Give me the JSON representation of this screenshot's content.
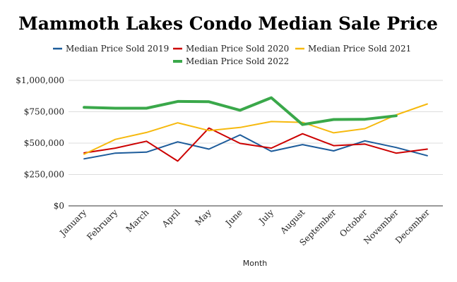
{
  "chart_data": {
    "type": "line",
    "title": "Mammoth Lakes Condo Median Sale Price",
    "xlabel": "Month",
    "ylabel": "",
    "ylim": [
      0,
      1000000
    ],
    "yticks": [
      0,
      250000,
      500000,
      750000,
      1000000
    ],
    "ytick_labels": [
      "$0",
      "$250,000",
      "$500,000",
      "$750,000",
      "$1,000,000"
    ],
    "grid": true,
    "legend_position": "top",
    "categories": [
      "January",
      "February",
      "March",
      "April",
      "May",
      "June",
      "July",
      "August",
      "September",
      "October",
      "November",
      "December"
    ],
    "series": [
      {
        "name": "Median Price Sold 2019",
        "color": "#1c5b9a",
        "values": [
          375000,
          420000,
          428000,
          510000,
          452000,
          565000,
          435000,
          488000,
          438000,
          518000,
          465000,
          400000
        ]
      },
      {
        "name": "Median Price Sold 2020",
        "color": "#cc0000",
        "values": [
          422000,
          460000,
          515000,
          357000,
          620000,
          498000,
          460000,
          575000,
          480000,
          492000,
          420000,
          452000
        ]
      },
      {
        "name": "Median Price Sold 2021",
        "color": "#f6b90e",
        "values": [
          412000,
          530000,
          585000,
          662000,
          600000,
          625000,
          672000,
          665000,
          582000,
          615000,
          725000,
          812000
        ]
      },
      {
        "name": "Median Price Sold 2022",
        "color": "#3aa84a",
        "values": [
          785000,
          778000,
          778000,
          832000,
          830000,
          762000,
          862000,
          648000,
          688000,
          690000,
          718000,
          null
        ]
      }
    ]
  }
}
